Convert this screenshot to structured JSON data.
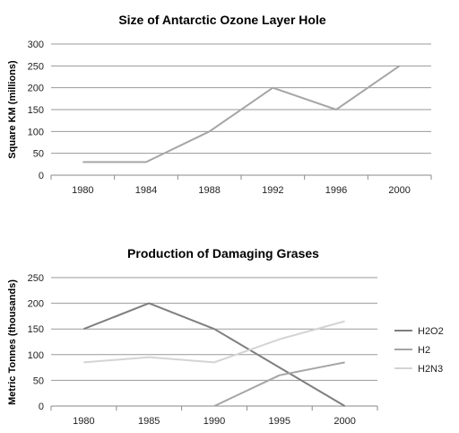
{
  "chart_data": [
    {
      "type": "line",
      "title": "Size of Antarctic Ozone Layer Hole",
      "xlabel": "",
      "ylabel": "Square KM (millions)",
      "categories": [
        "1980",
        "1984",
        "1988",
        "1992",
        "1996",
        "2000"
      ],
      "ylim": [
        0,
        300
      ],
      "yticks": [
        0,
        50,
        100,
        150,
        200,
        250,
        300
      ],
      "grid": true,
      "legend": "none",
      "series": [
        {
          "values": [
            30,
            30,
            100,
            200,
            150,
            250
          ],
          "color": "#a6a6a6"
        }
      ]
    },
    {
      "type": "line",
      "title": "Production of Damaging Grases",
      "xlabel": "",
      "ylabel": "Metric Tonnes (thousands)",
      "categories": [
        "1980",
        "1985",
        "1990",
        "1995",
        "2000"
      ],
      "ylim": [
        0,
        250
      ],
      "yticks": [
        0,
        50,
        100,
        150,
        200,
        250
      ],
      "grid": true,
      "legend": "right",
      "series": [
        {
          "name": "H2O2",
          "values": [
            150,
            200,
            150,
            75,
            0
          ],
          "color": "#7f7f7f"
        },
        {
          "name": "H2",
          "values": [
            null,
            null,
            0,
            60,
            85
          ],
          "color": "#a5a5a5"
        },
        {
          "name": "H2N3",
          "values": [
            85,
            95,
            85,
            130,
            165
          ],
          "color": "#d4d4d4"
        }
      ]
    }
  ]
}
